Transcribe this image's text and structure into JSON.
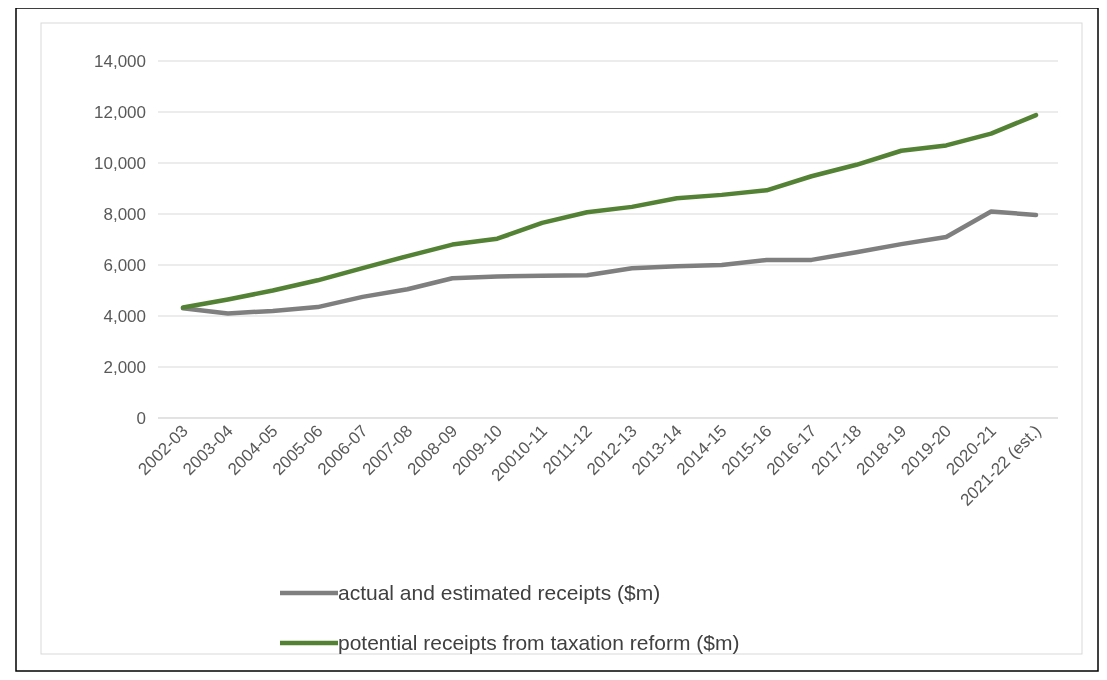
{
  "chart_data": {
    "type": "line",
    "categories": [
      "2002-03",
      "2003-04",
      "2004-05",
      "2005-06",
      "2006-07",
      "2007-08",
      "2008-09",
      "2009-10",
      "20010-11",
      "2011-12",
      "2012-13",
      "2013-14",
      "2014-15",
      "2015-16",
      "2016-17",
      "2017-18",
      "2018-19",
      "2019-20",
      "2020-21",
      "2021-22 (est.)"
    ],
    "series": [
      {
        "name": "actual and estimated receipts ($m)",
        "color": "#7f7f7f",
        "values": [
          4300,
          4100,
          4200,
          4350,
          4750,
          5050,
          5480,
          5550,
          5580,
          5600,
          5870,
          5950,
          6000,
          6200,
          6200,
          6500,
          6820,
          7100,
          8100,
          7960
        ]
      },
      {
        "name": "potential receipts from taxation reform ($m)",
        "color": "#548235",
        "values": [
          4330,
          4650,
          5000,
          5400,
          5880,
          6350,
          6800,
          7030,
          7650,
          8070,
          8280,
          8620,
          8750,
          8930,
          9480,
          9930,
          10480,
          10690,
          11150,
          11880
        ]
      }
    ],
    "ylim": [
      0,
      14000
    ],
    "yticks": [
      {
        "value": 0,
        "label": "0"
      },
      {
        "value": 2000,
        "label": "2,000"
      },
      {
        "value": 4000,
        "label": "4,000"
      },
      {
        "value": 6000,
        "label": "6,000"
      },
      {
        "value": 8000,
        "label": "8,000"
      },
      {
        "value": 10000,
        "label": "10,000"
      },
      {
        "value": 12000,
        "label": "12,000"
      },
      {
        "value": 14000,
        "label": "14,000"
      }
    ],
    "grid": "y",
    "legend": "bottom",
    "line_style": "solid",
    "marker": "none"
  }
}
